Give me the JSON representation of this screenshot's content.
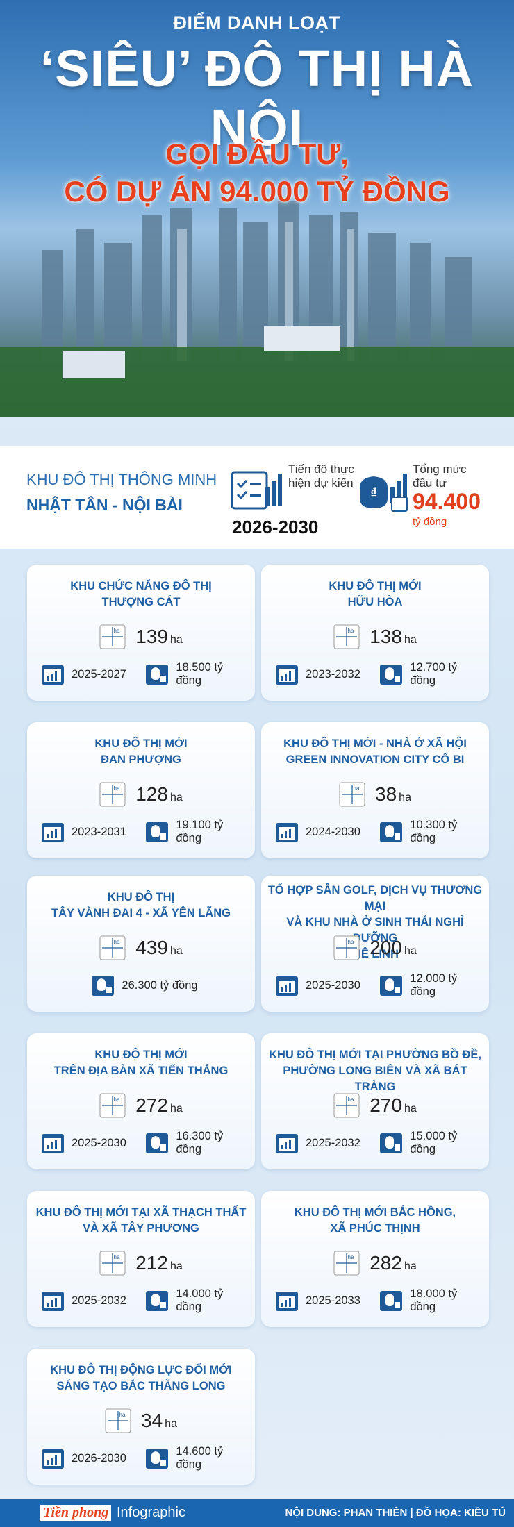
{
  "header": {
    "kicker": "ĐIỂM DANH LOẠT",
    "title": "‘SIÊU’ ĐÔ THỊ HÀ NỘI",
    "subtitle": [
      "GỌI ĐẦU TƯ,",
      "CÓ DỰ ÁN 94.000 TỶ ĐỒNG"
    ]
  },
  "featured": {
    "label": "KHU ĐÔ THỊ THÔNG MINH",
    "name": "NHẬT TÂN - NỘI BÀI",
    "timeline_label": "Tiến độ thực hiện dự kiến",
    "timeline": "2026-2030",
    "investment_label": "Tổng mức đầu tư",
    "investment": "94.400",
    "investment_unit": "tỷ đồng"
  },
  "area_unit": "ha",
  "projects": [
    {
      "name": [
        "KHU CHỨC NĂNG ĐÔ THỊ",
        "THƯỢNG CÁT"
      ],
      "area": 139,
      "period": "2025-2027",
      "investment": "18.500 tỷ đồng"
    },
    {
      "name": [
        "KHU ĐÔ THỊ MỚI",
        "HỮU HÒA"
      ],
      "area": 138,
      "period": "2023-2032",
      "investment": "12.700 tỷ đồng"
    },
    {
      "name": [
        "KHU ĐÔ THỊ MỚI",
        "ĐAN PHƯỢNG"
      ],
      "area": 128,
      "period": "2023-2031",
      "investment": "19.100 tỷ đồng"
    },
    {
      "name": [
        "KHU ĐÔ THỊ MỚI - NHÀ Ở XÃ HỘI",
        "GREEN INNOVATION CITY CỔ BI"
      ],
      "area": 38,
      "period": "2024-2030",
      "investment": "10.300 tỷ đồng"
    },
    {
      "name": [
        "KHU ĐÔ THỊ",
        "TÂY VÀNH ĐAI 4 - XÃ YÊN LÃNG"
      ],
      "area": 439,
      "investment": "26.300 tỷ đồng"
    },
    {
      "name": [
        "TỔ HỢP SÂN GOLF, DỊCH VỤ THƯƠNG MẠI",
        "VÀ KHU NHÀ Ở SINH THÁI NGHỈ DƯỠNG",
        "MÊ LINH"
      ],
      "area": 200,
      "period": "2025-2030",
      "investment": "12.000 tỷ đồng"
    },
    {
      "name": [
        "KHU ĐÔ THỊ MỚI",
        "TRÊN ĐỊA BÀN XÃ TIẾN THẮNG"
      ],
      "area": 272,
      "period": "2025-2030",
      "investment": "16.300 tỷ đồng"
    },
    {
      "name": [
        "KHU ĐÔ THỊ MỚI TẠI PHƯỜNG BỒ ĐỀ,",
        "PHƯỜNG LONG BIÊN VÀ XÃ BÁT TRÀNG"
      ],
      "area": 270,
      "period": "2025-2032",
      "investment": "15.000 tỷ đồng"
    },
    {
      "name": [
        "KHU ĐÔ THỊ MỚI TẠI XÃ THẠCH THẤT",
        "VÀ XÃ TÂY PHƯƠNG"
      ],
      "area": 212,
      "period": "2025-2032",
      "investment": "14.000 tỷ đồng"
    },
    {
      "name": [
        "KHU ĐÔ THỊ MỚI BẮC HỒNG,",
        "XÃ PHÚC THỊNH"
      ],
      "area": 282,
      "period": "2025-2033",
      "investment": "18.000 tỷ đồng"
    },
    {
      "name": [
        "KHU ĐÔ THỊ ĐỘNG LỰC ĐỔI MỚI",
        "SÁNG TẠO BẮC THĂNG LONG"
      ],
      "area": 34,
      "period": "2026-2030",
      "investment": "14.600 tỷ đồng"
    }
  ],
  "footer": {
    "brand": "Tiền phong",
    "section": "Infographic",
    "credits": "NỘI DUNG: PHAN THIÊN | ĐỒ HỌA: KIỀU TÚ"
  }
}
